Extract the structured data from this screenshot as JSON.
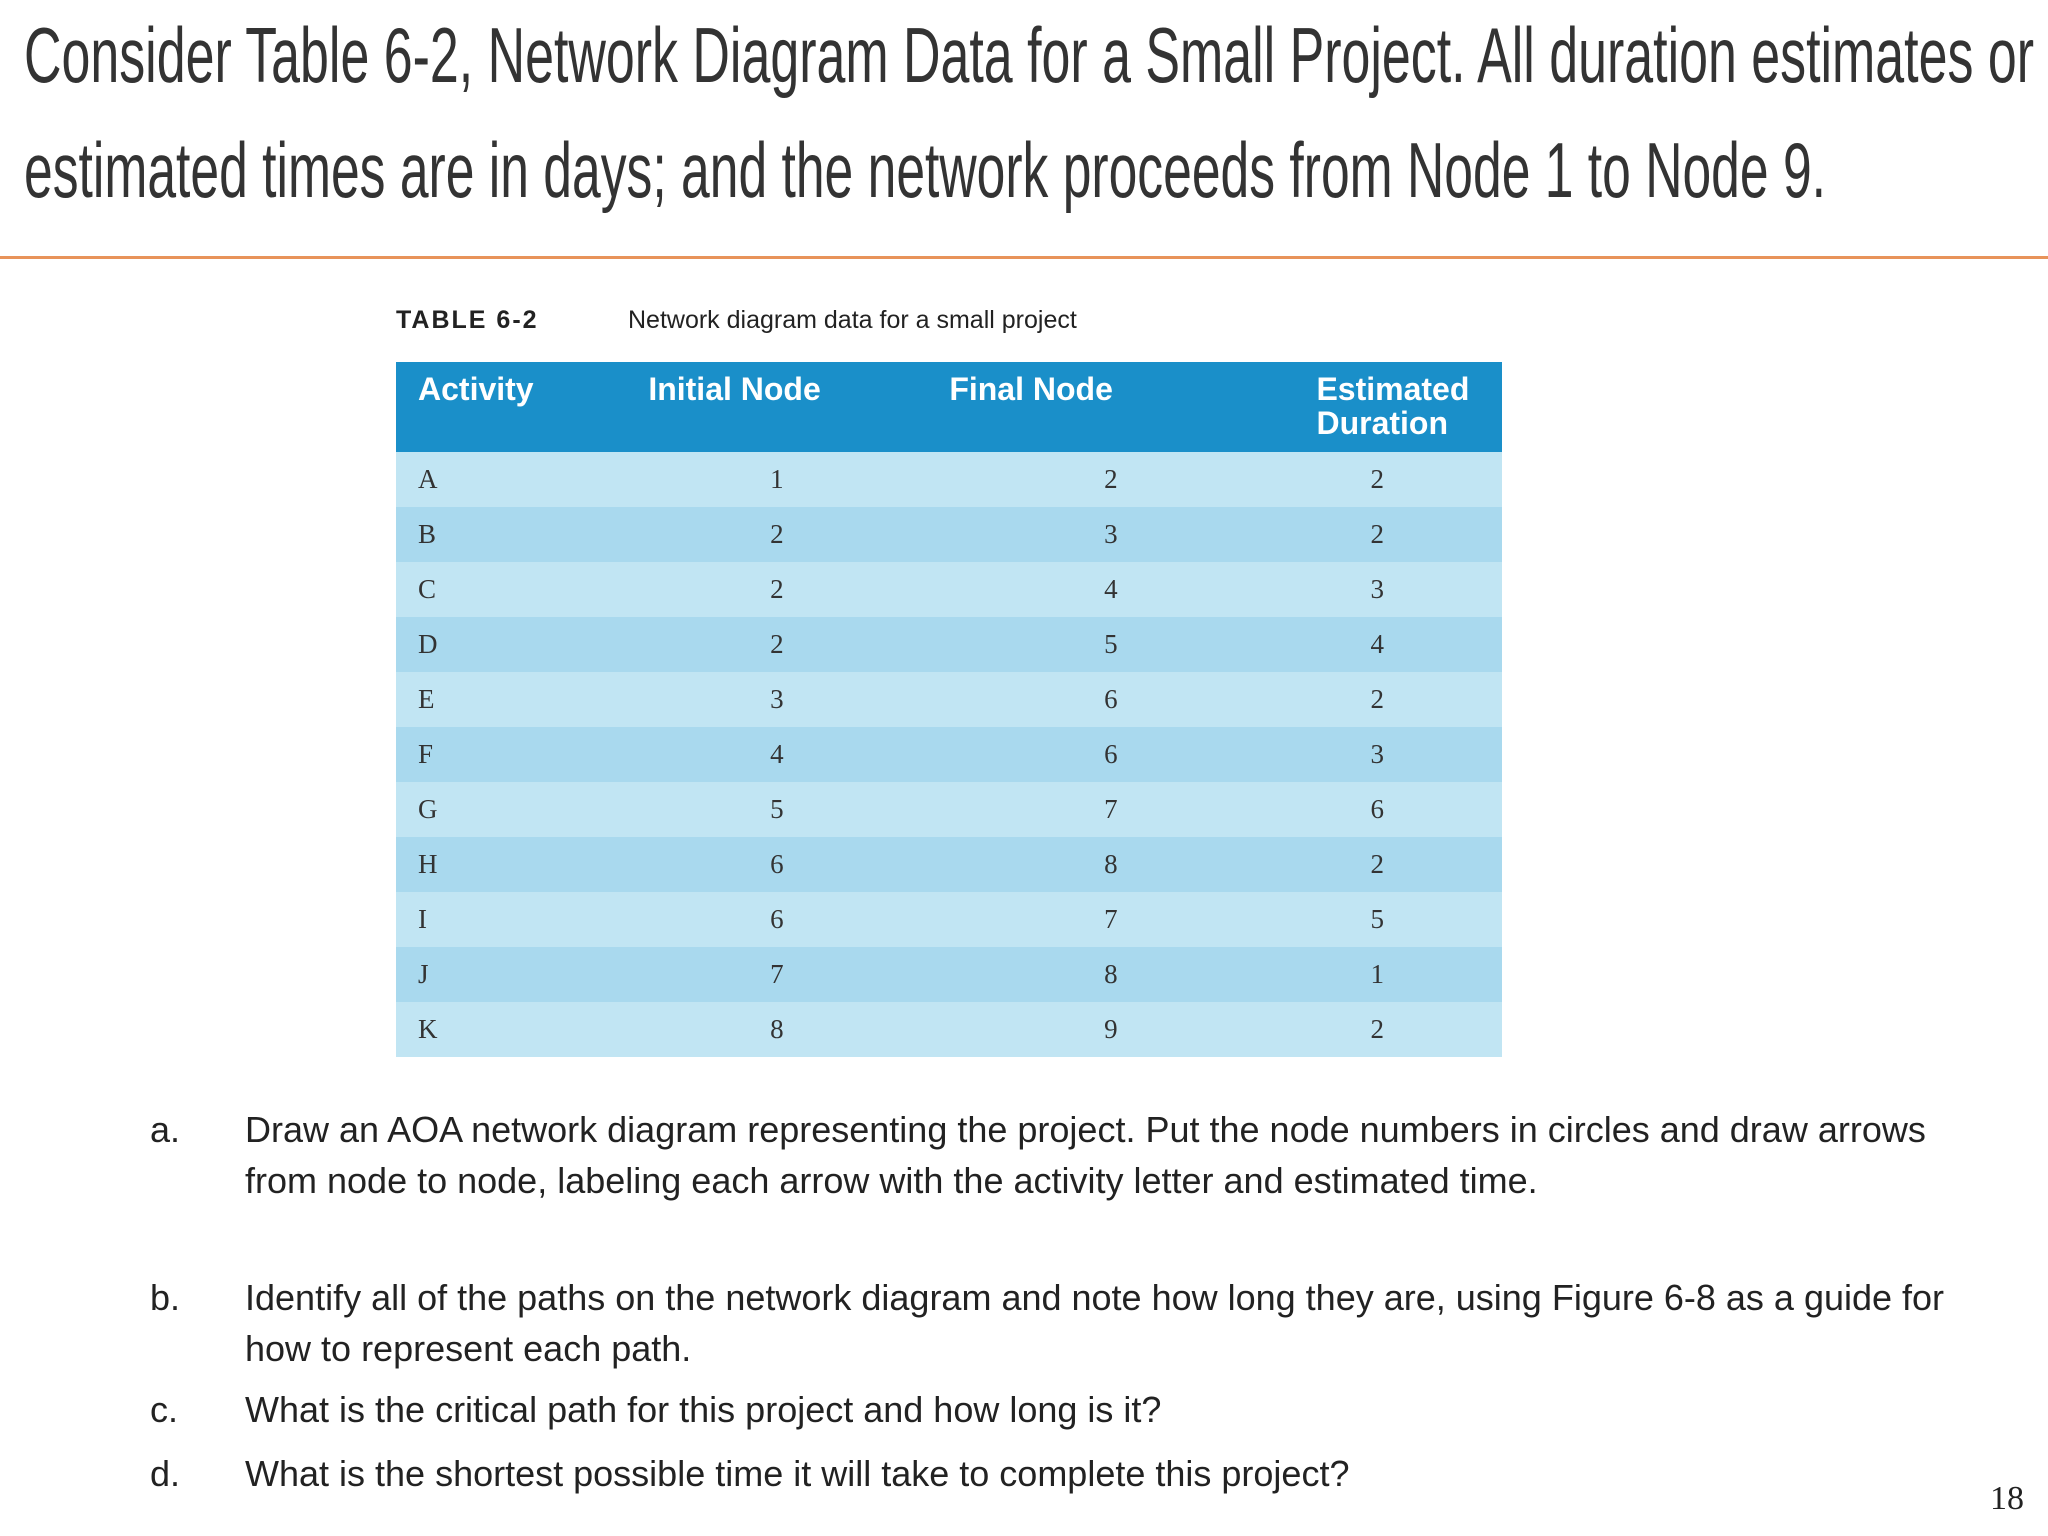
{
  "header": {
    "title_lines": [
      "Consider Table 6-2, Network Diagram Data for a Small Project. All duration estimates or",
      "estimated times are in days; and the network proceeds from Node 1 to Node 9."
    ]
  },
  "table": {
    "caption_label": "TABLE 6-2",
    "caption": "Network diagram data for a small project",
    "columns": [
      "Activity",
      "Initial Node",
      "Final Node",
      "Estimated Duration"
    ],
    "rows": [
      [
        "A",
        "1",
        "2",
        "2"
      ],
      [
        "B",
        "2",
        "3",
        "2"
      ],
      [
        "C",
        "2",
        "4",
        "3"
      ],
      [
        "D",
        "2",
        "5",
        "4"
      ],
      [
        "E",
        "3",
        "6",
        "2"
      ],
      [
        "F",
        "4",
        "6",
        "3"
      ],
      [
        "G",
        "5",
        "7",
        "6"
      ],
      [
        "H",
        "6",
        "8",
        "2"
      ],
      [
        "I",
        "6",
        "7",
        "5"
      ],
      [
        "J",
        "7",
        "8",
        "1"
      ],
      [
        "K",
        "8",
        "9",
        "2"
      ]
    ]
  },
  "questions": [
    {
      "label": "a.",
      "text": "Draw an AOA network diagram representing the project. Put the node numbers in circles and draw arrows from node to node, labeling each arrow with the activity letter and estimated time."
    },
    {
      "label": "b.",
      "text": "Identify all of the paths on the network diagram and note how long they are, using Figure 6-8 as a guide for how to represent each path."
    },
    {
      "label": "c.",
      "text": "What is the critical path for this project and how long is it?"
    },
    {
      "label": "d.",
      "text": "What is the shortest possible time it will take to complete this project?"
    }
  ],
  "page_number": "18"
}
